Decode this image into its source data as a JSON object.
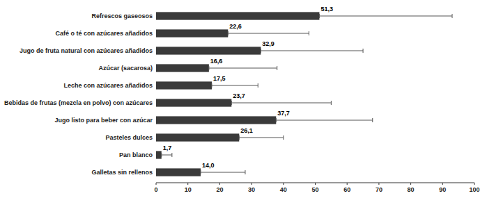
{
  "chart_data": {
    "type": "bar",
    "orientation": "horizontal",
    "categories": [
      "Galletas sin rellenos",
      "Pan blanco",
      "Pasteles dulces",
      "Jugo listo para beber con azúcar",
      "Bebidas de frutas (mezcla en polvo) con azúcares",
      "Leche con azúcares añadidos",
      "Azúcar (sacarosa)",
      "Jugo de fruta natural con azúcares añadidos",
      "Café o té con azúcares añadidos",
      "Refrescos gaseosos"
    ],
    "values": [
      14.0,
      1.7,
      26.1,
      37.7,
      23.7,
      17.5,
      16.6,
      32.9,
      22.6,
      51.3
    ],
    "value_labels": [
      "14,0",
      "1,7",
      "26,1",
      "37,7",
      "23,7",
      "17,5",
      "16,6",
      "32,9",
      "22,6",
      "51,3"
    ],
    "errors_upper": [
      14.0,
      3.3,
      13.9,
      30.3,
      31.3,
      14.5,
      21.4,
      32.1,
      25.4,
      41.7
    ],
    "color": "#3a3a3a",
    "xlim": [
      0,
      100
    ],
    "xticks": [
      0,
      10,
      20,
      30,
      40,
      50,
      60,
      70,
      80,
      90,
      100
    ],
    "data_labels": true,
    "grid": false
  }
}
